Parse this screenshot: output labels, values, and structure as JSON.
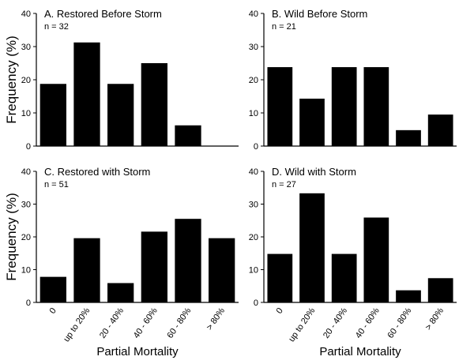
{
  "chart_data": [
    {
      "type": "bar",
      "title": "A. Restored Before Storm",
      "subtitle": "n = 32",
      "categories": [
        "0",
        "up to 20%",
        "20 - 40%",
        "40 - 60%",
        "60 - 80%",
        "> 80%"
      ],
      "values": [
        18.75,
        31.25,
        18.75,
        25.0,
        6.25,
        0
      ],
      "ylabel": "Frequency (%)",
      "xlabel": "",
      "ylim": [
        0,
        40
      ],
      "yticks": [
        0,
        10,
        20,
        30,
        40
      ],
      "show_xtick_labels": false,
      "grid": false,
      "legend": "none"
    },
    {
      "type": "bar",
      "title": "B. Wild Before Storm",
      "subtitle": "n = 21",
      "categories": [
        "0",
        "up to 20%",
        "20 - 40%",
        "40 - 60%",
        "60 - 80%",
        "> 80%"
      ],
      "values": [
        23.8,
        14.3,
        23.8,
        23.8,
        4.8,
        9.5
      ],
      "ylabel": "",
      "xlabel": "",
      "ylim": [
        0,
        40
      ],
      "yticks": [
        0,
        10,
        20,
        30,
        40
      ],
      "show_xtick_labels": false,
      "grid": false,
      "legend": "none"
    },
    {
      "type": "bar",
      "title": "C. Restored with Storm",
      "subtitle": "n = 51",
      "categories": [
        "0",
        "up to 20%",
        "20 - 40%",
        "40 - 60%",
        "60 - 80%",
        "> 80%"
      ],
      "values": [
        7.8,
        19.6,
        5.9,
        21.6,
        25.5,
        19.6
      ],
      "ylabel": "Frequency (%)",
      "xlabel": "Partial Mortality",
      "ylim": [
        0,
        40
      ],
      "yticks": [
        0,
        10,
        20,
        30,
        40
      ],
      "show_xtick_labels": true,
      "grid": false,
      "legend": "none"
    },
    {
      "type": "bar",
      "title": "D. Wild with Storm",
      "subtitle": "n = 27",
      "categories": [
        "0",
        "up to 20%",
        "20 - 40%",
        "40 - 60%",
        "60 - 80%",
        "> 80%"
      ],
      "values": [
        14.8,
        33.3,
        14.8,
        25.9,
        3.7,
        7.4
      ],
      "ylabel": "",
      "xlabel": "Partial Mortality",
      "ylim": [
        0,
        40
      ],
      "yticks": [
        0,
        10,
        20,
        30,
        40
      ],
      "show_xtick_labels": true,
      "grid": false,
      "legend": "none"
    }
  ]
}
